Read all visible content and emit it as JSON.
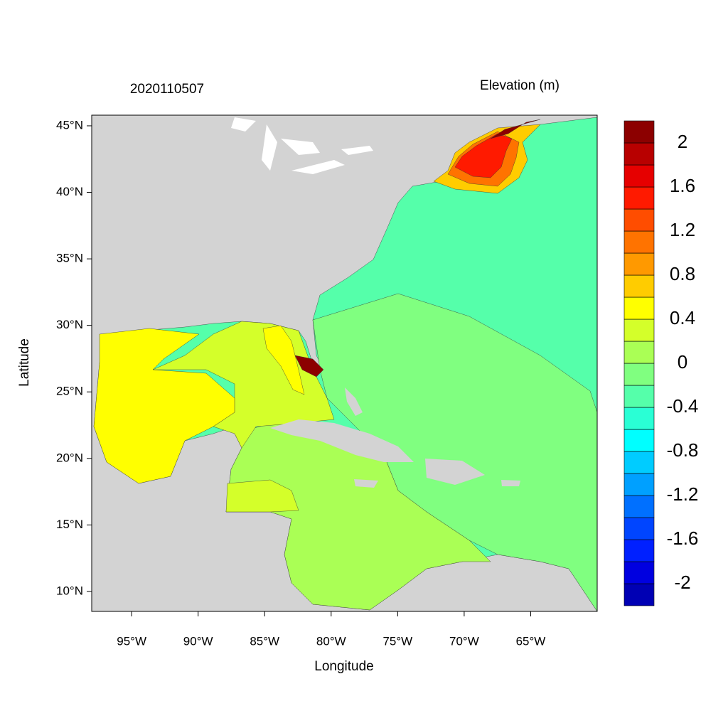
{
  "chart_data": {
    "type": "contour_map",
    "title": "2020110507",
    "colorbar_title": "Elevation (m)",
    "xlabel": "Longitude",
    "ylabel": "Latitude",
    "xlim": [
      -98,
      -60
    ],
    "ylim": [
      8.5,
      45.8
    ],
    "xticks": [
      {
        "value": -95,
        "label": "95°W"
      },
      {
        "value": -90,
        "label": "90°W"
      },
      {
        "value": -85,
        "label": "85°W"
      },
      {
        "value": -80,
        "label": "80°W"
      },
      {
        "value": -75,
        "label": "75°W"
      },
      {
        "value": -70,
        "label": "70°W"
      },
      {
        "value": -65,
        "label": "65°W"
      }
    ],
    "yticks": [
      {
        "value": 10,
        "label": "10°N"
      },
      {
        "value": 15,
        "label": "15°N"
      },
      {
        "value": 20,
        "label": "20°N"
      },
      {
        "value": 25,
        "label": "25°N"
      },
      {
        "value": 30,
        "label": "30°N"
      },
      {
        "value": 35,
        "label": "35°N"
      },
      {
        "value": 40,
        "label": "40°N"
      },
      {
        "value": 45,
        "label": "45°N"
      }
    ],
    "colorbar": {
      "levels": [
        -2.2,
        -2,
        -1.8,
        -1.6,
        -1.4,
        -1.2,
        -1,
        -0.8,
        -0.6,
        -0.4,
        -0.2,
        0,
        0.2,
        0.4,
        0.6,
        0.8,
        1,
        1.2,
        1.4,
        1.6,
        1.8,
        2,
        2.2
      ],
      "colors": [
        "#0000b4",
        "#0000e0",
        "#0020ff",
        "#0045ff",
        "#0070ff",
        "#00a0ff",
        "#00ccff",
        "#00ffff",
        "#2affd5",
        "#55ffaa",
        "#80ff80",
        "#aaff55",
        "#d4ff2a",
        "#ffff00",
        "#ffcc00",
        "#ff9900",
        "#ff7300",
        "#ff4d00",
        "#ff1a00",
        "#e60000",
        "#b80000",
        "#8c0000"
      ],
      "ticks": [
        -2,
        -1.6,
        -1.2,
        -0.8,
        -0.4,
        0,
        0.4,
        0.8,
        1.2,
        1.6,
        2
      ]
    }
  }
}
